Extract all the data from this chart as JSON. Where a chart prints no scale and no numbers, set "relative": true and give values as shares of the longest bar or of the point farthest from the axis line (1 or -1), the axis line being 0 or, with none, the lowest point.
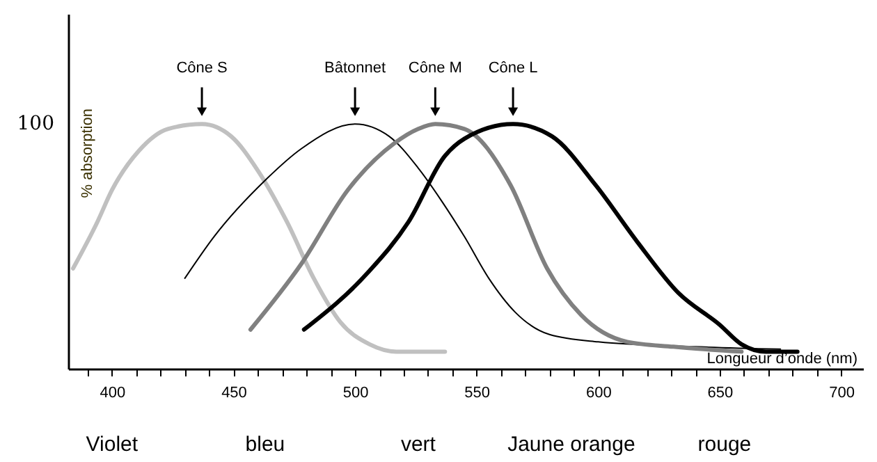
{
  "chart_data": {
    "type": "line",
    "relative": true,
    "xlabel": "Longueur d’onde (nm)",
    "ylabel": "% absorption",
    "xlim": [
      382,
      709
    ],
    "xticks": [
      {
        "value": 390,
        "label": null
      },
      400,
      {
        "value": 410,
        "label": null
      },
      {
        "value": 420,
        "label": null
      },
      {
        "value": 430,
        "label": null
      },
      {
        "value": 440,
        "label": null
      },
      450,
      {
        "value": 460,
        "label": null
      },
      {
        "value": 470,
        "label": null
      },
      {
        "value": 480,
        "label": null
      },
      {
        "value": 490,
        "label": null
      },
      500,
      {
        "value": 510,
        "label": null
      },
      {
        "value": 520,
        "label": null
      },
      {
        "value": 530,
        "label": null
      },
      {
        "value": 540,
        "label": null
      },
      550,
      {
        "value": 560,
        "label": null
      },
      {
        "value": 570,
        "label": null
      },
      {
        "value": 580,
        "label": null
      },
      {
        "value": 590,
        "label": null
      },
      600,
      {
        "value": 610,
        "label": null
      },
      {
        "value": 620,
        "label": null
      },
      {
        "value": 630,
        "label": null
      },
      {
        "value": 640,
        "label": null
      },
      650,
      {
        "value": 660,
        "label": null
      },
      {
        "value": 670,
        "label": null
      },
      {
        "value": 680,
        "label": null
      },
      {
        "value": 690,
        "label": null
      },
      700
    ],
    "series": [
      {
        "name": "Cône S",
        "color": "#c0c0c0",
        "x": [
          384,
          394,
          400,
          411,
          423,
          437,
          449,
          460,
          472,
          483,
          494,
          506,
          517,
          537
        ],
        "values": [
          0.41,
          0.6,
          0.73,
          0.89,
          0.98,
          1.0,
          0.95,
          0.81,
          0.6,
          0.37,
          0.19,
          0.1,
          0.07,
          0.07
        ]
      },
      {
        "name": "Bâtonnet",
        "color": "#000000",
        "x": [
          430,
          442,
          463,
          478,
          500,
          514,
          526,
          536,
          545,
          555,
          566,
          580,
          600,
          640,
          675
        ],
        "values": [
          0.37,
          0.54,
          0.77,
          0.9,
          1.0,
          0.95,
          0.82,
          0.68,
          0.54,
          0.37,
          0.23,
          0.14,
          0.11,
          0.09,
          0.08
        ]
      },
      {
        "name": "Cône M",
        "color": "#808080",
        "x": [
          457,
          478,
          497,
          516,
          526,
          533,
          545,
          564,
          579,
          593,
          612,
          631,
          659
        ],
        "values": [
          0.16,
          0.43,
          0.73,
          0.92,
          0.98,
          1.0,
          0.98,
          0.75,
          0.41,
          0.22,
          0.11,
          0.09,
          0.07
        ]
      },
      {
        "name": "Cône L",
        "color": "#000000",
        "x": [
          479,
          505,
          522,
          537,
          545,
          565,
          581,
          599,
          616,
          633,
          650,
          659,
          669,
          682
        ],
        "values": [
          0.16,
          0.39,
          0.6,
          0.87,
          0.94,
          1.0,
          0.95,
          0.75,
          0.52,
          0.31,
          0.18,
          0.1,
          0.07,
          0.07
        ]
      }
    ],
    "annotations": [
      "100",
      "Violet",
      "bleu",
      "vert",
      "Jaune  orange",
      "rouge"
    ],
    "legend": false,
    "grid": false
  }
}
